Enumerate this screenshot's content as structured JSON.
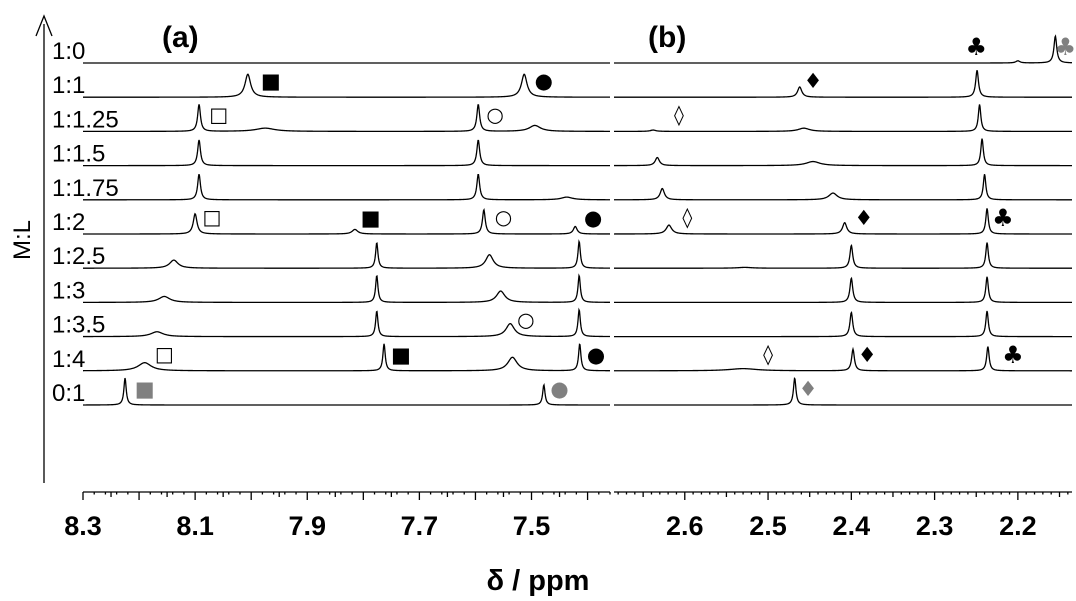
{
  "chart_data": {
    "type": "stacked NMR spectra",
    "y_axis_label": "M:L",
    "x_axis_label": "δ / ppm",
    "ratios": [
      "1:0",
      "1:1",
      "1:1.25",
      "1:1.5",
      "1:1.75",
      "1:2",
      "1:2.5",
      "1:3",
      "1:3.5",
      "1:4",
      "0:1"
    ],
    "colors": {
      "line": "#000000",
      "free_ligand_marker": "#808080"
    },
    "panels": [
      {
        "label": "(a)",
        "xlim": [
          8.3,
          7.36
        ],
        "tick_labels": [
          "8.3",
          "8.1",
          "7.9",
          "7.7",
          "7.5"
        ],
        "tick_values": [
          8.3,
          8.1,
          7.9,
          7.7,
          7.5
        ],
        "traces": [
          {
            "ratio": "1:0",
            "peaks": []
          },
          {
            "ratio": "1:1",
            "peaks": [
              {
                "pos": 8.006,
                "h": 0.85,
                "w": 0.006
              },
              {
                "pos": 7.513,
                "h": 0.85,
                "w": 0.006
              }
            ]
          },
          {
            "ratio": "1:1.25",
            "peaks": [
              {
                "pos": 8.093,
                "h": 1.0,
                "w": 0.003
              },
              {
                "pos": 7.975,
                "h": 0.12,
                "w": 0.02
              },
              {
                "pos": 7.595,
                "h": 1.0,
                "w": 0.003
              },
              {
                "pos": 7.494,
                "h": 0.22,
                "w": 0.012
              }
            ]
          },
          {
            "ratio": "1:1.5",
            "peaks": [
              {
                "pos": 8.093,
                "h": 0.95,
                "w": 0.003
              },
              {
                "pos": 7.595,
                "h": 0.95,
                "w": 0.003
              }
            ]
          },
          {
            "ratio": "1:1.75",
            "peaks": [
              {
                "pos": 8.093,
                "h": 0.95,
                "w": 0.003
              },
              {
                "pos": 7.595,
                "h": 0.95,
                "w": 0.003
              },
              {
                "pos": 7.437,
                "h": 0.1,
                "w": 0.012
              }
            ]
          },
          {
            "ratio": "1:2",
            "peaks": [
              {
                "pos": 8.1,
                "h": 0.75,
                "w": 0.004
              },
              {
                "pos": 7.815,
                "h": 0.17,
                "w": 0.006
              },
              {
                "pos": 7.585,
                "h": 0.9,
                "w": 0.003
              },
              {
                "pos": 7.422,
                "h": 0.28,
                "w": 0.004
              }
            ]
          },
          {
            "ratio": "1:2.5",
            "peaks": [
              {
                "pos": 8.138,
                "h": 0.3,
                "w": 0.009
              },
              {
                "pos": 7.776,
                "h": 0.95,
                "w": 0.0025
              },
              {
                "pos": 7.575,
                "h": 0.5,
                "w": 0.008
              },
              {
                "pos": 7.415,
                "h": 1.0,
                "w": 0.0025
              }
            ]
          },
          {
            "ratio": "1:3",
            "peaks": [
              {
                "pos": 8.155,
                "h": 0.22,
                "w": 0.012
              },
              {
                "pos": 7.776,
                "h": 1.0,
                "w": 0.0025
              },
              {
                "pos": 7.555,
                "h": 0.42,
                "w": 0.009
              },
              {
                "pos": 7.415,
                "h": 1.0,
                "w": 0.0025
              }
            ]
          },
          {
            "ratio": "1:3.5",
            "peaks": [
              {
                "pos": 8.168,
                "h": 0.18,
                "w": 0.013
              },
              {
                "pos": 7.776,
                "h": 0.95,
                "w": 0.0025
              },
              {
                "pos": 7.538,
                "h": 0.48,
                "w": 0.009
              },
              {
                "pos": 7.415,
                "h": 1.0,
                "w": 0.0025
              }
            ]
          },
          {
            "ratio": "1:4",
            "peaks": [
              {
                "pos": 8.19,
                "h": 0.3,
                "w": 0.014
              },
              {
                "pos": 7.763,
                "h": 1.0,
                "w": 0.0025
              },
              {
                "pos": 7.534,
                "h": 0.5,
                "w": 0.01
              },
              {
                "pos": 7.414,
                "h": 1.0,
                "w": 0.0025
              }
            ]
          },
          {
            "ratio": "0:1",
            "peaks": [
              {
                "pos": 8.225,
                "h": 1.0,
                "w": 0.0025
              },
              {
                "pos": 7.478,
                "h": 0.75,
                "w": 0.0025
              }
            ]
          }
        ],
        "markers": [
          {
            "ratio": "1:1",
            "x": 7.965,
            "symbol": "■",
            "color": "#000000"
          },
          {
            "ratio": "1:1",
            "x": 7.478,
            "symbol": "●",
            "color": "#000000"
          },
          {
            "ratio": "1:1.25",
            "x": 8.058,
            "symbol": "□",
            "color": "#000000"
          },
          {
            "ratio": "1:1.25",
            "x": 7.565,
            "symbol": "○",
            "color": "#000000"
          },
          {
            "ratio": "1:2",
            "x": 8.07,
            "symbol": "□",
            "color": "#000000"
          },
          {
            "ratio": "1:2",
            "x": 7.787,
            "symbol": "■",
            "color": "#000000"
          },
          {
            "ratio": "1:2",
            "x": 7.55,
            "symbol": "○",
            "color": "#000000"
          },
          {
            "ratio": "1:2",
            "x": 7.39,
            "symbol": "●",
            "color": "#000000"
          },
          {
            "ratio": "1:3.5",
            "x": 7.51,
            "symbol": "○",
            "color": "#000000"
          },
          {
            "ratio": "1:4",
            "x": 8.155,
            "symbol": "□",
            "color": "#000000"
          },
          {
            "ratio": "1:4",
            "x": 7.733,
            "symbol": "■",
            "color": "#000000"
          },
          {
            "ratio": "1:4",
            "x": 7.385,
            "symbol": "●",
            "color": "#000000"
          },
          {
            "ratio": "0:1",
            "x": 8.19,
            "symbol": "■",
            "color": "#808080"
          },
          {
            "ratio": "0:1",
            "x": 7.45,
            "symbol": "●",
            "color": "#808080"
          }
        ]
      },
      {
        "label": "(b)",
        "xlim": [
          2.685,
          2.135
        ],
        "tick_labels": [
          "2.6",
          "2.5",
          "2.4",
          "2.3",
          "2.2"
        ],
        "tick_values": [
          2.6,
          2.5,
          2.4,
          2.3,
          2.2
        ],
        "traces": [
          {
            "ratio": "1:0",
            "peaks": [
              {
                "pos": 2.155,
                "h": 1.0,
                "w": 0.002
              },
              {
                "pos": 2.2,
                "h": 0.08,
                "w": 0.003
              }
            ]
          },
          {
            "ratio": "1:1",
            "peaks": [
              {
                "pos": 2.462,
                "h": 0.38,
                "w": 0.003
              },
              {
                "pos": 2.249,
                "h": 1.0,
                "w": 0.002
              }
            ]
          },
          {
            "ratio": "1:1.25",
            "peaks": [
              {
                "pos": 2.638,
                "h": 0.05,
                "w": 0.004
              },
              {
                "pos": 2.457,
                "h": 0.12,
                "w": 0.008
              },
              {
                "pos": 2.246,
                "h": 1.0,
                "w": 0.0018
              }
            ]
          },
          {
            "ratio": "1:1.5",
            "peaks": [
              {
                "pos": 2.633,
                "h": 0.3,
                "w": 0.003
              },
              {
                "pos": 2.446,
                "h": 0.15,
                "w": 0.01
              },
              {
                "pos": 2.243,
                "h": 1.0,
                "w": 0.0018
              }
            ]
          },
          {
            "ratio": "1:1.75",
            "peaks": [
              {
                "pos": 2.627,
                "h": 0.42,
                "w": 0.003
              },
              {
                "pos": 2.422,
                "h": 0.25,
                "w": 0.006
              },
              {
                "pos": 2.24,
                "h": 0.95,
                "w": 0.0018
              }
            ]
          },
          {
            "ratio": "1:2",
            "peaks": [
              {
                "pos": 2.619,
                "h": 0.33,
                "w": 0.004
              },
              {
                "pos": 2.408,
                "h": 0.42,
                "w": 0.003
              },
              {
                "pos": 2.237,
                "h": 0.95,
                "w": 0.0018
              }
            ]
          },
          {
            "ratio": "1:2.5",
            "peaks": [
              {
                "pos": 2.528,
                "h": 0.03,
                "w": 0.01
              },
              {
                "pos": 2.4,
                "h": 0.85,
                "w": 0.002
              },
              {
                "pos": 2.237,
                "h": 0.95,
                "w": 0.0018
              }
            ]
          },
          {
            "ratio": "1:3",
            "peaks": [
              {
                "pos": 2.4,
                "h": 0.9,
                "w": 0.002
              },
              {
                "pos": 2.237,
                "h": 0.95,
                "w": 0.0018
              }
            ]
          },
          {
            "ratio": "1:3.5",
            "peaks": [
              {
                "pos": 2.4,
                "h": 0.9,
                "w": 0.002
              },
              {
                "pos": 2.237,
                "h": 0.95,
                "w": 0.0018
              }
            ]
          },
          {
            "ratio": "1:4",
            "peaks": [
              {
                "pos": 2.53,
                "h": 0.08,
                "w": 0.02
              },
              {
                "pos": 2.398,
                "h": 0.8,
                "w": 0.002
              },
              {
                "pos": 2.236,
                "h": 0.9,
                "w": 0.0018
              }
            ]
          },
          {
            "ratio": "0:1",
            "peaks": [
              {
                "pos": 2.468,
                "h": 1.0,
                "w": 0.0018
              }
            ]
          }
        ],
        "markers": [
          {
            "ratio": "1:0",
            "x": 2.25,
            "symbol": "♣",
            "color": "#000000"
          },
          {
            "ratio": "1:0",
            "x": 2.143,
            "symbol": "♣",
            "color": "#808080"
          },
          {
            "ratio": "1:1",
            "x": 2.446,
            "symbol": "♦",
            "color": "#000000"
          },
          {
            "ratio": "1:1.25",
            "x": 2.607,
            "symbol": "◊",
            "color": "#000000"
          },
          {
            "ratio": "1:2",
            "x": 2.597,
            "symbol": "◊",
            "color": "#000000"
          },
          {
            "ratio": "1:2",
            "x": 2.385,
            "symbol": "♦",
            "color": "#000000"
          },
          {
            "ratio": "1:2",
            "x": 2.218,
            "symbol": "♣",
            "color": "#000000"
          },
          {
            "ratio": "1:4",
            "x": 2.5,
            "symbol": "◊",
            "color": "#000000"
          },
          {
            "ratio": "1:4",
            "x": 2.381,
            "symbol": "♦",
            "color": "#000000"
          },
          {
            "ratio": "1:4",
            "x": 2.206,
            "symbol": "♣",
            "color": "#000000"
          },
          {
            "ratio": "0:1",
            "x": 2.452,
            "symbol": "♦",
            "color": "#808080"
          }
        ]
      }
    ]
  }
}
